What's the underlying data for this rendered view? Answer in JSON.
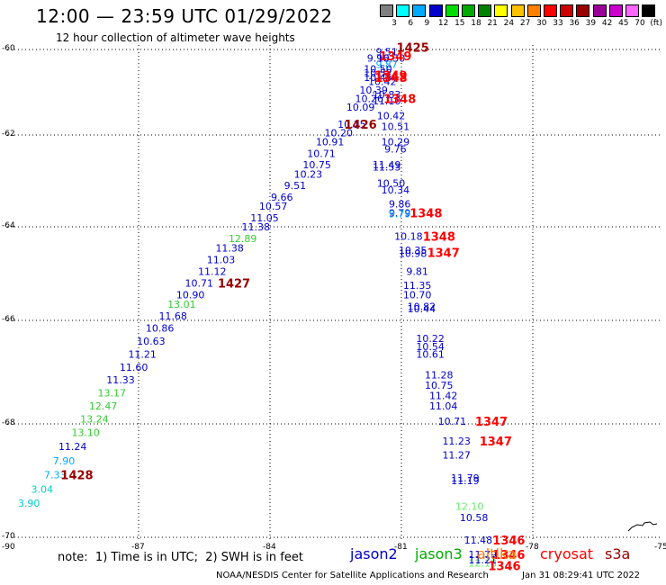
{
  "title": "12:00 — 23:59 UTC 01/29/2022",
  "subtitle": "12 hour collection of altimeter wave heights",
  "legend": {
    "colors": [
      "#808080",
      "#00ffff",
      "#00aaff",
      "#0000cc",
      "#00dd00",
      "#00aa00",
      "#008000",
      "#ffff00",
      "#ffc000",
      "#ff8000",
      "#ff0000",
      "#cc0000",
      "#990000",
      "#990099",
      "#cc00cc",
      "#ff66ff",
      "#000000"
    ],
    "labels": [
      "3",
      "6",
      "9",
      "12",
      "15",
      "18",
      "21",
      "24",
      "27",
      "30",
      "33",
      "36",
      "39",
      "42",
      "45",
      "70",
      "(ft)"
    ]
  },
  "axes": {
    "lat_labels": [
      "-60",
      "-62",
      "-64",
      "-66",
      "-68",
      "-70"
    ],
    "lon_labels": [
      "-90",
      "-87",
      "-84",
      "-81",
      "-78",
      "-75"
    ]
  },
  "note": "note:  1) Time is in UTC;  2) SWH is in feet",
  "satellites": [
    {
      "name": "jason2",
      "color": "#0000cc"
    },
    {
      "name": "jason3",
      "color": "#00aa00"
    },
    {
      "name": "altika",
      "color": "#ff8000"
    },
    {
      "name": "cryosat",
      "color": "#ff0000"
    },
    {
      "name": "s3a",
      "color": "#990000"
    }
  ],
  "footer_left": "NOAA/NESDIS Center for Satellite Applications and Research",
  "footer_right": "Jan 31 08:29:41 UTC 2022",
  "track_points": [
    {
      "lon": -81.3,
      "lat": -60.05,
      "t": "9.51",
      "c": "#0000cc"
    },
    {
      "lon": -81.5,
      "lat": -60.2,
      "t": "9.96",
      "c": "#0000cc"
    },
    {
      "lon": -81.3,
      "lat": -60.35,
      "t": "9.87",
      "c": "#00aaff"
    },
    {
      "lon": -81.2,
      "lat": -60.2,
      "t": "10.30",
      "c": "#0000cc"
    },
    {
      "lon": -81.5,
      "lat": -60.45,
      "t": "10.50",
      "c": "#0000cc"
    },
    {
      "lon": -81.5,
      "lat": -60.55,
      "t": "10.52",
      "c": "#0000cc"
    },
    {
      "lon": -81.5,
      "lat": -60.65,
      "t": "10.45",
      "c": "#0000cc"
    },
    {
      "lon": -81.4,
      "lat": -60.75,
      "t": "10.42",
      "c": "#0000cc"
    },
    {
      "lon": -81.6,
      "lat": -60.95,
      "t": "10.39",
      "c": "#0000cc"
    },
    {
      "lon": -81.3,
      "lat": -61.05,
      "t": "10.83",
      "c": "#0000cc"
    },
    {
      "lon": -81.7,
      "lat": -61.15,
      "t": "10.26",
      "c": "#0000cc"
    },
    {
      "lon": -81.3,
      "lat": -61.2,
      "t": "11.10",
      "c": "#0000cc"
    },
    {
      "lon": -81.9,
      "lat": -61.35,
      "t": "10.09",
      "c": "#0000cc"
    },
    {
      "lon": -81.2,
      "lat": -61.55,
      "t": "10.42",
      "c": "#0000cc"
    },
    {
      "lon": -82.1,
      "lat": -61.75,
      "t": "10.15",
      "c": "#0000cc"
    },
    {
      "lon": -81.1,
      "lat": -61.8,
      "t": "10.51",
      "c": "#0000cc"
    },
    {
      "lon": -82.4,
      "lat": -61.95,
      "t": "10.20",
      "c": "#0000cc"
    },
    {
      "lon": -81.1,
      "lat": -62.15,
      "t": "10.29",
      "c": "#0000cc"
    },
    {
      "lon": -82.6,
      "lat": -62.15,
      "t": "10.91",
      "c": "#0000cc"
    },
    {
      "lon": -81.1,
      "lat": -62.3,
      "t": "9.76",
      "c": "#0000cc"
    },
    {
      "lon": -82.8,
      "lat": -62.4,
      "t": "10.71",
      "c": "#0000cc"
    },
    {
      "lon": -82.9,
      "lat": -62.65,
      "t": "10.75",
      "c": "#0000cc"
    },
    {
      "lon": -81.3,
      "lat": -62.65,
      "t": "11.49",
      "c": "#0000cc"
    },
    {
      "lon": -81.3,
      "lat": -62.7,
      "t": "11.53",
      "c": "#0000cc"
    },
    {
      "lon": -83.1,
      "lat": -62.85,
      "t": "10.23",
      "c": "#0000cc"
    },
    {
      "lon": -81.2,
      "lat": -63.05,
      "t": "10.50",
      "c": "#0000cc"
    },
    {
      "lon": -83.4,
      "lat": -63.1,
      "t": "9.51",
      "c": "#0000cc"
    },
    {
      "lon": -81.1,
      "lat": -63.2,
      "t": "10.34",
      "c": "#0000cc"
    },
    {
      "lon": -83.7,
      "lat": -63.35,
      "t": "9.66",
      "c": "#0000cc"
    },
    {
      "lon": -81.0,
      "lat": -63.5,
      "t": "9.86",
      "c": "#0000cc"
    },
    {
      "lon": -83.9,
      "lat": -63.55,
      "t": "10.57",
      "c": "#0000cc"
    },
    {
      "lon": -81.0,
      "lat": -63.7,
      "t": "9.79",
      "c": "#0000cc"
    },
    {
      "lon": -81.0,
      "lat": -63.72,
      "t": "9.79",
      "c": "#00aaff"
    },
    {
      "lon": -84.1,
      "lat": -63.8,
      "t": "11.05",
      "c": "#0000cc"
    },
    {
      "lon": -84.3,
      "lat": -64.0,
      "t": "11.38",
      "c": "#0000cc"
    },
    {
      "lon": -80.8,
      "lat": -64.2,
      "t": "10.18",
      "c": "#0000cc"
    },
    {
      "lon": -84.6,
      "lat": -64.25,
      "t": "12.89",
      "c": "#33cc33"
    },
    {
      "lon": -80.7,
      "lat": -64.5,
      "t": "10.35",
      "c": "#0000cc"
    },
    {
      "lon": -84.9,
      "lat": -64.45,
      "t": "11.38",
      "c": "#0000cc"
    },
    {
      "lon": -80.7,
      "lat": -64.57,
      "t": "10.98",
      "c": "#0000cc"
    },
    {
      "lon": -85.1,
      "lat": -64.7,
      "t": "11.03",
      "c": "#0000cc"
    },
    {
      "lon": -85.3,
      "lat": -64.95,
      "t": "11.12",
      "c": "#0000cc"
    },
    {
      "lon": -80.6,
      "lat": -64.95,
      "t": "9.81",
      "c": "#0000cc"
    },
    {
      "lon": -85.6,
      "lat": -65.2,
      "t": "10.71",
      "c": "#0000cc"
    },
    {
      "lon": -80.6,
      "lat": -65.25,
      "t": "11.35",
      "c": "#0000cc"
    },
    {
      "lon": -85.8,
      "lat": -65.45,
      "t": "10.90",
      "c": "#0000cc"
    },
    {
      "lon": -80.6,
      "lat": -65.45,
      "t": "10.70",
      "c": "#0000cc"
    },
    {
      "lon": -86.0,
      "lat": -65.65,
      "t": "13.01",
      "c": "#33cc33"
    },
    {
      "lon": -80.5,
      "lat": -65.7,
      "t": "10.82",
      "c": "#0000cc"
    },
    {
      "lon": -80.5,
      "lat": -65.75,
      "t": "10.44",
      "c": "#0000cc"
    },
    {
      "lon": -86.2,
      "lat": -65.9,
      "t": "11.68",
      "c": "#0000cc"
    },
    {
      "lon": -86.5,
      "lat": -66.15,
      "t": "10.86",
      "c": "#0000cc"
    },
    {
      "lon": -80.3,
      "lat": -66.35,
      "t": "10.22",
      "c": "#0000cc"
    },
    {
      "lon": -86.7,
      "lat": -66.4,
      "t": "10.63",
      "c": "#0000cc"
    },
    {
      "lon": -80.3,
      "lat": -66.5,
      "t": "10.54",
      "c": "#0000cc"
    },
    {
      "lon": -80.3,
      "lat": -66.65,
      "t": "10.61",
      "c": "#0000cc"
    },
    {
      "lon": -86.9,
      "lat": -66.65,
      "t": "11.21",
      "c": "#0000cc"
    },
    {
      "lon": -87.1,
      "lat": -66.9,
      "t": "11.60",
      "c": "#0000cc"
    },
    {
      "lon": -80.1,
      "lat": -67.05,
      "t": "11.28",
      "c": "#0000cc"
    },
    {
      "lon": -87.4,
      "lat": -67.15,
      "t": "11.33",
      "c": "#0000cc"
    },
    {
      "lon": -80.1,
      "lat": -67.25,
      "t": "10.75",
      "c": "#0000cc"
    },
    {
      "lon": -87.6,
      "lat": -67.4,
      "t": "13.17",
      "c": "#33cc33"
    },
    {
      "lon": -80.0,
      "lat": -67.45,
      "t": "11.42",
      "c": "#0000cc"
    },
    {
      "lon": -80.0,
      "lat": -67.65,
      "t": "11.04",
      "c": "#0000cc"
    },
    {
      "lon": -87.8,
      "lat": -67.65,
      "t": "12.47",
      "c": "#33cc33"
    },
    {
      "lon": -79.8,
      "lat": -67.95,
      "t": "10.71",
      "c": "#0000cc"
    },
    {
      "lon": -88.0,
      "lat": -67.9,
      "t": "13.24",
      "c": "#33cc33"
    },
    {
      "lon": -88.2,
      "lat": -68.15,
      "t": "13.10",
      "c": "#33cc33"
    },
    {
      "lon": -79.7,
      "lat": -68.3,
      "t": "11.23",
      "c": "#0000cc"
    },
    {
      "lon": -88.5,
      "lat": -68.4,
      "t": "11.24",
      "c": "#0000cc"
    },
    {
      "lon": -79.7,
      "lat": -68.55,
      "t": "11.27",
      "c": "#0000cc"
    },
    {
      "lon": -88.7,
      "lat": -68.65,
      "t": "7.90",
      "c": "#00aaff"
    },
    {
      "lon": -88.9,
      "lat": -68.9,
      "t": "7.33",
      "c": "#00aaff"
    },
    {
      "lon": -79.5,
      "lat": -68.95,
      "t": "11.79",
      "c": "#0000cc"
    },
    {
      "lon": -79.5,
      "lat": -69.0,
      "t": "11.19",
      "c": "#0000cc"
    },
    {
      "lon": -89.2,
      "lat": -69.15,
      "t": "3.04",
      "c": "#00cccc"
    },
    {
      "lon": -89.5,
      "lat": -69.4,
      "t": "3.90",
      "c": "#00cccc"
    },
    {
      "lon": -79.4,
      "lat": -69.45,
      "t": "12.10",
      "c": "#66ee66"
    },
    {
      "lon": -79.3,
      "lat": -69.65,
      "t": "10.58",
      "c": "#0000cc"
    },
    {
      "lon": -79.2,
      "lat": -70.05,
      "t": "11.48",
      "c": "#0000cc"
    },
    {
      "lon": -79.1,
      "lat": -70.3,
      "t": "11.79",
      "c": "#0000cc"
    },
    {
      "lon": -79.1,
      "lat": -70.45,
      "t": "12.18",
      "c": "#66ee66"
    },
    {
      "lon": -79.1,
      "lat": -70.4,
      "t": "11.21",
      "c": "#0000cc"
    }
  ],
  "time_labels": [
    {
      "lon": -80.7,
      "lat": -59.95,
      "t": "1425",
      "c": "#990000"
    },
    {
      "lon": -81.1,
      "lat": -60.15,
      "t": "1349",
      "c": "#ff0000"
    },
    {
      "lon": -81.2,
      "lat": -60.6,
      "t": "1349",
      "c": "#ff0000"
    },
    {
      "lon": -81.2,
      "lat": -60.65,
      "t": "1348",
      "c": "#ff0000"
    },
    {
      "lon": -81.0,
      "lat": -61.15,
      "t": "1348",
      "c": "#ff0000"
    },
    {
      "lon": -81.9,
      "lat": -61.75,
      "t": "1426",
      "c": "#990000"
    },
    {
      "lon": -80.4,
      "lat": -63.7,
      "t": "1348",
      "c": "#ff0000"
    },
    {
      "lon": -80.1,
      "lat": -64.2,
      "t": "1348",
      "c": "#ff0000"
    },
    {
      "lon": -80.0,
      "lat": -64.55,
      "t": "1347",
      "c": "#ff0000"
    },
    {
      "lon": -84.8,
      "lat": -65.2,
      "t": "1427",
      "c": "#990000"
    },
    {
      "lon": -78.9,
      "lat": -67.95,
      "t": "1347",
      "c": "#ff0000"
    },
    {
      "lon": -78.8,
      "lat": -68.3,
      "t": "1347",
      "c": "#ff0000"
    },
    {
      "lon": -88.4,
      "lat": -68.9,
      "t": "1428",
      "c": "#990000"
    },
    {
      "lon": -78.5,
      "lat": -70.05,
      "t": "1346",
      "c": "#ff0000"
    },
    {
      "lon": -78.5,
      "lat": -70.3,
      "t": "1346",
      "c": "#ff0000"
    },
    {
      "lon": -78.6,
      "lat": -70.5,
      "t": "1346",
      "c": "#ff0000"
    }
  ]
}
